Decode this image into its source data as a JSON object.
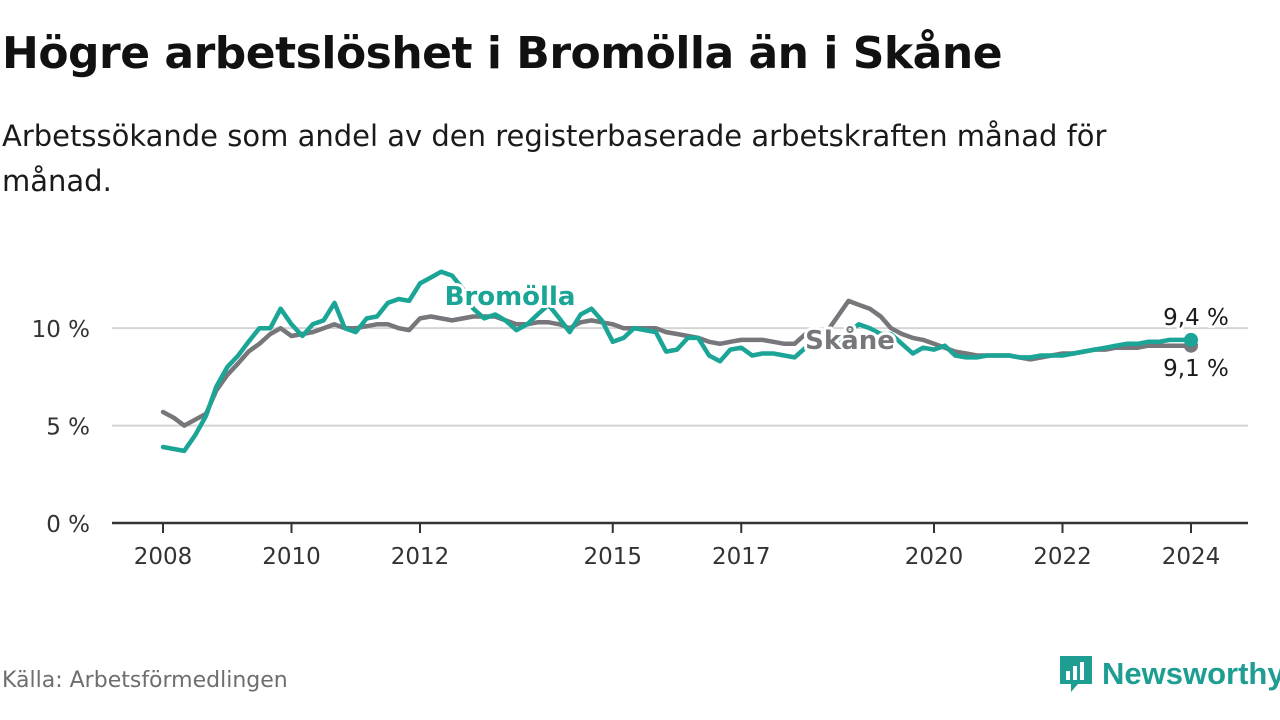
{
  "header": {
    "title": "Högre arbetslöshet i Bromölla än i Skåne",
    "subtitle": "Arbetssökande som andel av den registerbaserade arbetskraften månad för månad."
  },
  "footer": {
    "source": "Källa: Arbetsförmedlingen",
    "brand": "Newsworthy"
  },
  "colors": {
    "bromolla": "#1aa597",
    "skane": "#76767b",
    "grid": "#d4d4d4",
    "axis": "#333333",
    "brand": "#1e9e92"
  },
  "chart_data": {
    "type": "line",
    "title": "Högre arbetslöshet i Bromölla än i Skåne",
    "xlabel": "",
    "ylabel": "",
    "xlim": [
      2008,
      2025
    ],
    "ylim": [
      0,
      13.5
    ],
    "grid": true,
    "x_ticks": [
      2008,
      2010,
      2012,
      2015,
      2017,
      2020,
      2022,
      2024
    ],
    "x_tick_labels": [
      "2008",
      "2010",
      "2012",
      "2015",
      "2017",
      "2020",
      "2022",
      "2024"
    ],
    "y_ticks": [
      0,
      5,
      10
    ],
    "y_tick_labels": [
      "0 %",
      "5 %",
      "10 %"
    ],
    "series": [
      {
        "name": "Bromölla",
        "label": "Bromölla",
        "last_label": "9,4 %",
        "x": [
          2008.0,
          2008.17,
          2008.33,
          2008.5,
          2008.67,
          2008.83,
          2009.0,
          2009.17,
          2009.33,
          2009.5,
          2009.67,
          2009.83,
          2010.0,
          2010.17,
          2010.33,
          2010.5,
          2010.67,
          2010.83,
          2011.0,
          2011.17,
          2011.33,
          2011.5,
          2011.67,
          2011.83,
          2012.0,
          2012.17,
          2012.33,
          2012.5,
          2012.67,
          2012.83,
          2013.0,
          2013.17,
          2013.33,
          2013.5,
          2013.67,
          2013.83,
          2014.0,
          2014.17,
          2014.33,
          2014.5,
          2014.67,
          2014.83,
          2015.0,
          2015.17,
          2015.33,
          2015.5,
          2015.67,
          2015.83,
          2016.0,
          2016.17,
          2016.33,
          2016.5,
          2016.67,
          2016.83,
          2017.0,
          2017.17,
          2017.33,
          2017.5,
          2017.67,
          2017.83,
          2018.0,
          2018.17,
          2018.33,
          2018.5,
          2018.67,
          2018.83,
          2019.0,
          2019.17,
          2019.33,
          2019.5,
          2019.67,
          2019.83,
          2020.0,
          2020.17,
          2020.33,
          2020.5,
          2020.67,
          2020.83,
          2021.0,
          2021.17,
          2021.33,
          2021.5,
          2021.67,
          2021.83,
          2022.0,
          2022.17,
          2022.33,
          2022.5,
          2022.67,
          2022.83,
          2023.0,
          2023.17,
          2023.33,
          2023.5,
          2023.67,
          2023.83,
          2024.0
        ],
        "values": [
          3.9,
          3.8,
          3.7,
          4.5,
          5.5,
          7.0,
          8.0,
          8.6,
          9.3,
          10.0,
          10.0,
          11.0,
          10.2,
          9.6,
          10.2,
          10.4,
          11.3,
          10.0,
          9.8,
          10.5,
          10.6,
          11.3,
          11.5,
          11.4,
          12.3,
          12.6,
          12.9,
          12.7,
          12.0,
          11.0,
          10.5,
          10.7,
          10.4,
          9.9,
          10.2,
          10.7,
          11.2,
          10.5,
          9.8,
          10.7,
          11.0,
          10.4,
          9.3,
          9.5,
          10.0,
          9.9,
          9.8,
          8.8,
          8.9,
          9.5,
          9.5,
          8.6,
          8.3,
          8.9,
          9.0,
          8.6,
          8.7,
          8.7,
          8.6,
          8.5,
          9.0,
          9.1,
          9.2,
          9.0,
          9.8,
          10.2,
          10.0,
          9.7,
          9.7,
          9.2,
          8.7,
          9.0,
          8.9,
          9.1,
          8.6,
          8.5,
          8.5,
          8.6,
          8.6,
          8.6,
          8.5,
          8.5,
          8.6,
          8.6,
          8.6,
          8.7,
          8.8,
          8.9,
          9.0,
          9.1,
          9.2,
          9.2,
          9.3,
          9.3,
          9.4,
          9.4,
          9.4
        ]
      },
      {
        "name": "Skåne",
        "label": "Skåne",
        "last_label": "9,1 %",
        "x": [
          2008.0,
          2008.17,
          2008.33,
          2008.5,
          2008.67,
          2008.83,
          2009.0,
          2009.17,
          2009.33,
          2009.5,
          2009.67,
          2009.83,
          2010.0,
          2010.17,
          2010.33,
          2010.5,
          2010.67,
          2010.83,
          2011.0,
          2011.17,
          2011.33,
          2011.5,
          2011.67,
          2011.83,
          2012.0,
          2012.17,
          2012.33,
          2012.5,
          2012.67,
          2012.83,
          2013.0,
          2013.17,
          2013.33,
          2013.5,
          2013.67,
          2013.83,
          2014.0,
          2014.17,
          2014.33,
          2014.5,
          2014.67,
          2014.83,
          2015.0,
          2015.17,
          2015.33,
          2015.5,
          2015.67,
          2015.83,
          2016.0,
          2016.17,
          2016.33,
          2016.5,
          2016.67,
          2016.83,
          2017.0,
          2017.17,
          2017.33,
          2017.5,
          2017.67,
          2017.83,
          2018.0,
          2018.17,
          2018.33,
          2018.5,
          2018.67,
          2018.83,
          2019.0,
          2019.17,
          2019.33,
          2019.5,
          2019.67,
          2019.83,
          2020.0,
          2020.17,
          2020.33,
          2020.5,
          2020.67,
          2020.83,
          2021.0,
          2021.17,
          2021.33,
          2021.5,
          2021.67,
          2021.83,
          2022.0,
          2022.17,
          2022.33,
          2022.5,
          2022.67,
          2022.83,
          2023.0,
          2023.17,
          2023.33,
          2023.5,
          2023.67,
          2023.83,
          2024.0
        ],
        "values": [
          5.7,
          5.4,
          5.0,
          5.3,
          5.6,
          6.8,
          7.6,
          8.2,
          8.8,
          9.2,
          9.7,
          10.0,
          9.6,
          9.7,
          9.8,
          10.0,
          10.2,
          10.0,
          10.0,
          10.1,
          10.2,
          10.2,
          10.0,
          9.9,
          10.5,
          10.6,
          10.5,
          10.4,
          10.5,
          10.6,
          10.6,
          10.6,
          10.4,
          10.2,
          10.2,
          10.3,
          10.3,
          10.2,
          10.0,
          10.3,
          10.4,
          10.3,
          10.2,
          10.0,
          10.0,
          10.0,
          10.0,
          9.8,
          9.7,
          9.6,
          9.5,
          9.3,
          9.2,
          9.3,
          9.4,
          9.4,
          9.4,
          9.3,
          9.2,
          9.2,
          9.7,
          9.8,
          9.8,
          10.6,
          11.4,
          11.2,
          11.0,
          10.6,
          10.0,
          9.7,
          9.5,
          9.4,
          9.2,
          9.0,
          8.8,
          8.7,
          8.6,
          8.6,
          8.6,
          8.6,
          8.5,
          8.4,
          8.5,
          8.6,
          8.7,
          8.7,
          8.8,
          8.9,
          8.9,
          9.0,
          9.0,
          9.0,
          9.1,
          9.1,
          9.1,
          9.1,
          9.1
        ]
      }
    ]
  }
}
